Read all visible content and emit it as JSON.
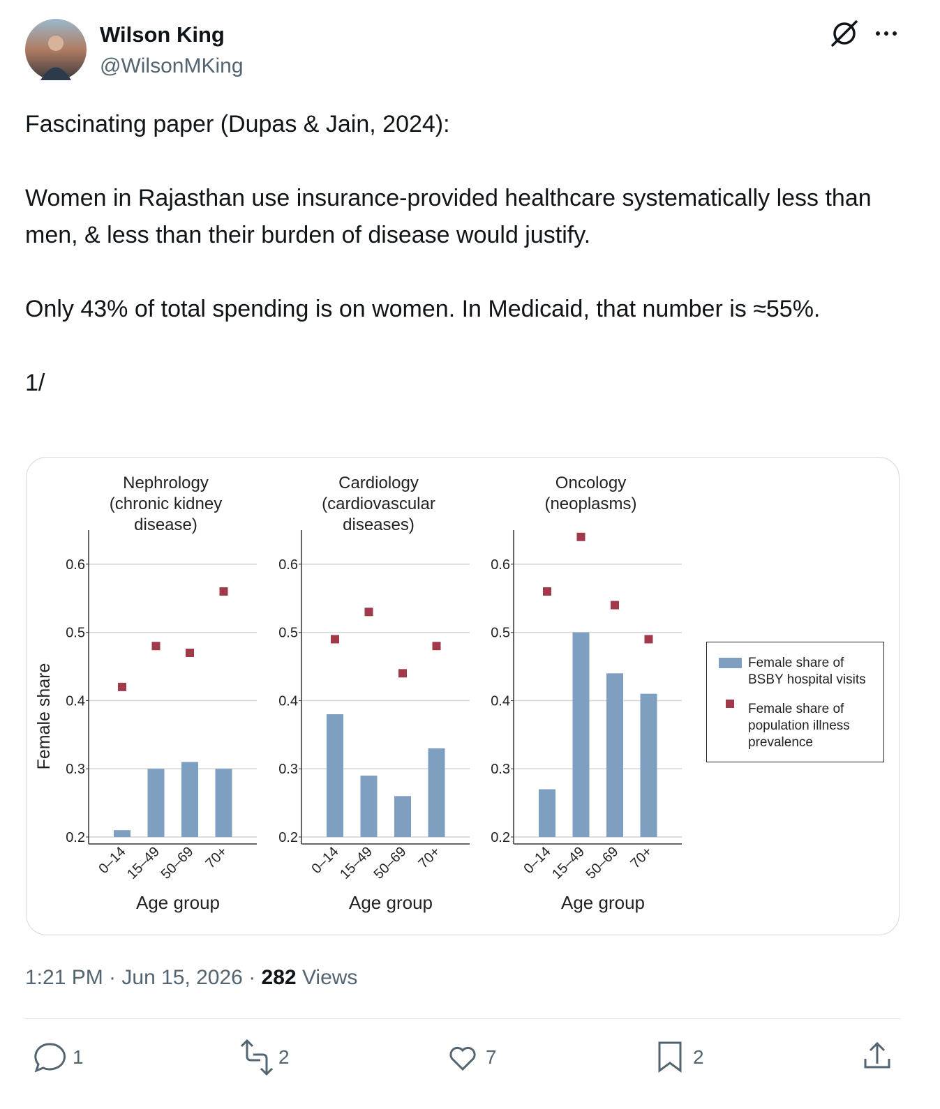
{
  "header": {
    "name": "Wilson King",
    "handle": "@WilsonMKing"
  },
  "paragraphs": [
    "Fascinating paper (Dupas & Jain, 2024):",
    "Women in Rajasthan use insurance-provided healthcare systematically less than men, & less than their burden of disease would justify.",
    "Only 43% of total spending is on women. In Medicaid, that number is ≈55%.",
    "1/"
  ],
  "chart_data": [
    {
      "type": "bar",
      "title": [
        "Nephrology",
        "(chronic kidney",
        "disease)"
      ],
      "ylabel": "Female share",
      "xlabel": "Age group",
      "categories": [
        "0–14",
        "15–49",
        "50–69",
        "70+"
      ],
      "series": [
        {
          "name": "Female share of BSBY hospital visits",
          "color": "#7f9fc0",
          "values": [
            0.21,
            0.3,
            0.31,
            0.3
          ]
        },
        {
          "name": "Female share of population illness prevalence",
          "color": "#a0394a",
          "marker": "square",
          "values": [
            0.42,
            0.48,
            0.47,
            0.56
          ]
        }
      ],
      "ylim": [
        0.2,
        0.65
      ],
      "yticks": [
        0.2,
        0.3,
        0.4,
        0.5,
        0.6
      ],
      "grid": true,
      "legend": "right"
    },
    {
      "type": "bar",
      "title": [
        "Cardiology",
        "(cardiovascular",
        "diseases)"
      ],
      "xlabel": "Age group",
      "categories": [
        "0–14",
        "15–49",
        "50–69",
        "70+"
      ],
      "series": [
        {
          "color": "#7f9fc0",
          "values": [
            0.38,
            0.29,
            0.26,
            0.33
          ]
        },
        {
          "color": "#a0394a",
          "marker": "square",
          "values": [
            0.49,
            0.53,
            0.44,
            0.48
          ]
        }
      ],
      "ylim": [
        0.2,
        0.65
      ],
      "yticks": [
        0.2,
        0.3,
        0.4,
        0.5,
        0.6
      ],
      "grid": true
    },
    {
      "type": "bar",
      "title": [
        "Oncology",
        "(neoplasms)"
      ],
      "xlabel": "Age group",
      "categories": [
        "0–14",
        "15–49",
        "50–69",
        "70+"
      ],
      "series": [
        {
          "color": "#7f9fc0",
          "values": [
            0.27,
            0.5,
            0.44,
            0.41
          ]
        },
        {
          "color": "#a0394a",
          "marker": "square",
          "values": [
            0.56,
            0.64,
            0.54,
            0.49
          ]
        }
      ],
      "ylim": [
        0.2,
        0.65
      ],
      "yticks": [
        0.2,
        0.3,
        0.4,
        0.5,
        0.6
      ],
      "grid": true
    }
  ],
  "footer": {
    "timestamp": "1:21 PM · Jun 15, 2026 ·",
    "views": 282,
    "views_label": "Views"
  },
  "actions": {
    "replies": 1,
    "reposts": 2,
    "likes": 7,
    "bookmarks": 2
  }
}
